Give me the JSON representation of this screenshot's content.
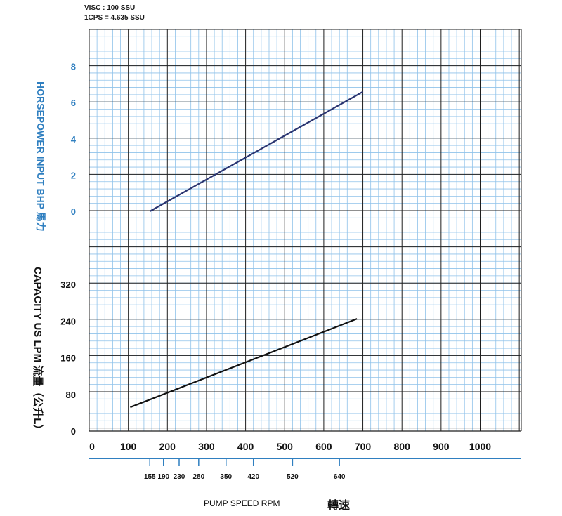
{
  "notes": {
    "line1": "VISC : 100 SSU",
    "line2": "1CPS = 4.635 SSU"
  },
  "chart_data": {
    "type": "line",
    "xlabel": "PUMP  SPEED  RPM",
    "xlabel_cn": "轉速",
    "x_ticks": [
      0,
      100,
      200,
      300,
      400,
      500,
      600,
      700,
      800,
      900,
      1000
    ],
    "x_ticks_secondary": [
      155,
      190,
      230,
      280,
      350,
      420,
      520,
      640
    ],
    "grid": true,
    "panels": [
      {
        "name": "horsepower",
        "ylabel": "HORSEPOWER INPUT BHP 馬力",
        "y_ticks": [
          0,
          2,
          4,
          6,
          8
        ],
        "ylim": [
          0,
          8
        ],
        "series": [
          {
            "color": "#2a3470",
            "x": [
              155,
              700
            ],
            "y": [
              0.0,
              6.6
            ]
          }
        ]
      },
      {
        "name": "capacity",
        "ylabel": "CAPACITY  US  LPM  流量（公升L）",
        "y_ticks": [
          0,
          80,
          160,
          240,
          320
        ],
        "ylim": [
          0,
          320
        ],
        "series": [
          {
            "color": "#111111",
            "x": [
              105,
              685
            ],
            "y": [
              52,
              245
            ]
          }
        ]
      }
    ]
  }
}
